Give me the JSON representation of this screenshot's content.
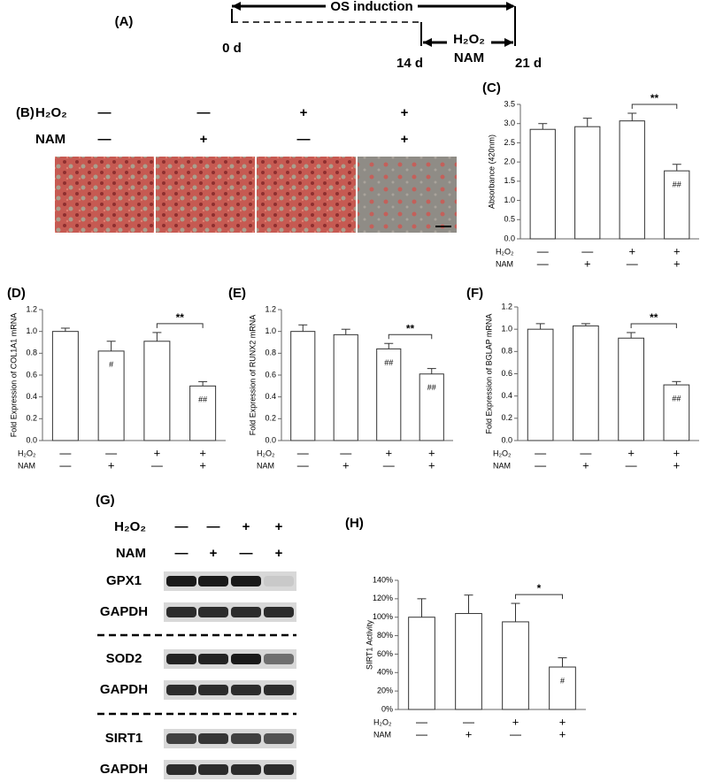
{
  "timeline": {
    "panel": "(A)",
    "title": "OS induction",
    "start": "0 d",
    "mid": "14 d",
    "end": "21 d",
    "agents": [
      "H₂O₂",
      "NAM"
    ]
  },
  "staining": {
    "panel": "(B)",
    "treatments": [
      {
        "label": "H₂O₂",
        "signs": [
          "—",
          "—",
          "+",
          "+"
        ]
      },
      {
        "label": "NAM",
        "signs": [
          "—",
          "+",
          "—",
          "+"
        ]
      }
    ]
  },
  "blot": {
    "panel": "(G)",
    "treatments": [
      {
        "label": "H₂O₂",
        "signs": [
          "—",
          "—",
          "+",
          "+"
        ]
      },
      {
        "label": "NAM",
        "signs": [
          "—",
          "+",
          "—",
          "+"
        ]
      }
    ],
    "rows": [
      "GPX1",
      "GAPDH",
      "SOD2",
      "GAPDH",
      "SIRT1",
      "GAPDH"
    ]
  },
  "chart_data": [
    {
      "type": "bar",
      "panel": "(C)",
      "y_label": "Absorbance (420nm)",
      "color": "#ffffff",
      "values": [
        2.85,
        2.92,
        3.07,
        1.77
      ],
      "errors": [
        0.15,
        0.22,
        0.2,
        0.17
      ],
      "bar_labels": [
        null,
        null,
        null,
        "##"
      ],
      "bracket": "**",
      "ylim": [
        0,
        3.5
      ],
      "yticks": [
        {
          "value": 0,
          "label": "0.0"
        },
        0.5,
        {
          "value": 1,
          "label": "1.0"
        },
        1.5,
        {
          "value": 2,
          "label": "2.0"
        },
        2.5,
        {
          "value": 3,
          "label": "3.0"
        },
        3.5
      ],
      "treatments": [
        {
          "label": "H₂O₂",
          "signs": [
            "—",
            "—",
            "+",
            "+"
          ]
        },
        {
          "label": "NAM",
          "signs": [
            "—",
            "+",
            "—",
            "+"
          ]
        }
      ]
    },
    {
      "type": "bar",
      "panel": "(D)",
      "y_label": "Fold Expression of COL1A1 mRNA",
      "color": "#ffffff",
      "values": [
        1.0,
        0.82,
        0.91,
        0.5
      ],
      "errors": [
        0.03,
        0.09,
        0.08,
        0.04
      ],
      "bar_labels": [
        null,
        "#",
        null,
        "##"
      ],
      "bracket": "**",
      "ylim": [
        0,
        1.2
      ],
      "yticks": [
        {
          "value": 0,
          "label": "0.0"
        },
        0.2,
        0.4,
        0.6,
        0.8,
        {
          "value": 1,
          "label": "1.0"
        },
        1.2
      ],
      "treatments": [
        {
          "label": "H₂O₂",
          "signs": [
            "—",
            "—",
            "+",
            "+"
          ]
        },
        {
          "label": "NAM",
          "signs": [
            "—",
            "+",
            "—",
            "+"
          ]
        }
      ]
    },
    {
      "type": "bar",
      "panel": "(E)",
      "y_label": "Fold Expression of RUNX2 mRNA",
      "color": "#ffffff",
      "values": [
        1.0,
        0.97,
        0.84,
        0.61
      ],
      "errors": [
        0.06,
        0.05,
        0.05,
        0.05
      ],
      "bar_labels": [
        null,
        null,
        "##",
        "##"
      ],
      "bracket": "**",
      "ylim": [
        0,
        1.2
      ],
      "yticks": [
        {
          "value": 0,
          "label": "0.0"
        },
        0.2,
        0.4,
        0.6,
        0.8,
        {
          "value": 1,
          "label": "1.0"
        },
        1.2
      ],
      "treatments": [
        {
          "label": "H₂O₂",
          "signs": [
            "—",
            "—",
            "+",
            "+"
          ]
        },
        {
          "label": "NAM",
          "signs": [
            "—",
            "+",
            "—",
            "+"
          ]
        }
      ]
    },
    {
      "type": "bar",
      "panel": "(F)",
      "y_label": "Fold Expression of BGLAP mRNA",
      "color": "#ffffff",
      "values": [
        1.0,
        1.03,
        0.92,
        0.5
      ],
      "errors": [
        0.05,
        0.02,
        0.05,
        0.03
      ],
      "bar_labels": [
        null,
        null,
        null,
        "##"
      ],
      "bracket": "**",
      "ylim": [
        0,
        1.2
      ],
      "yticks": [
        {
          "value": 0,
          "label": "0.0"
        },
        0.2,
        0.4,
        0.6,
        0.8,
        {
          "value": 1,
          "label": "1.0"
        },
        1.2
      ],
      "treatments": [
        {
          "label": "H₂O₂",
          "signs": [
            "—",
            "—",
            "+",
            "+"
          ]
        },
        {
          "label": "NAM",
          "signs": [
            "—",
            "+",
            "—",
            "+"
          ]
        }
      ]
    },
    {
      "type": "bar",
      "panel": "(H)",
      "y_label": "SIRT1 Activity",
      "color": "#ffffff",
      "values": [
        100,
        104,
        95,
        46
      ],
      "errors": [
        20,
        20,
        20,
        10
      ],
      "bar_labels": [
        null,
        null,
        null,
        "#"
      ],
      "bracket": "*",
      "ylim": [
        0,
        140
      ],
      "yticks": [
        {
          "value": 0,
          "label": "0%"
        },
        {
          "value": 20,
          "label": "20%"
        },
        {
          "value": 40,
          "label": "40%"
        },
        {
          "value": 60,
          "label": "60%"
        },
        {
          "value": 80,
          "label": "80%"
        },
        {
          "value": 100,
          "label": "100%"
        },
        {
          "value": 120,
          "label": "120%"
        },
        {
          "value": 140,
          "label": "140%"
        }
      ],
      "treatments": [
        {
          "label": "H₂O₂",
          "signs": [
            "—",
            "—",
            "+",
            "+"
          ]
        },
        {
          "label": "NAM",
          "signs": [
            "—",
            "+",
            "—",
            "+"
          ]
        }
      ]
    }
  ]
}
